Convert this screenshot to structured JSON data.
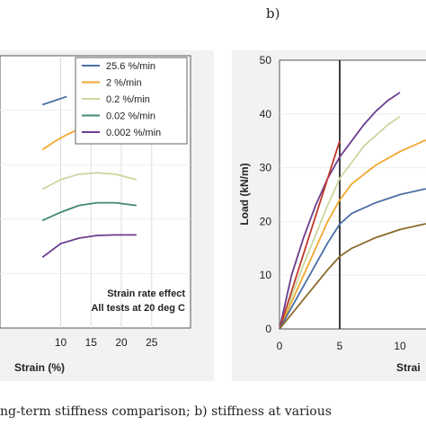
{
  "panel_letter": "b)",
  "caption": "ng-term stiffness comparison; b) stiffness at various",
  "colors": {
    "blue": "#4a6fa5",
    "orange": "#f0a830",
    "light_green": "#c8d8a0",
    "teal": "#3f8a72",
    "purple": "#6a3d8e",
    "red": "#c0392b",
    "brown": "#8b6b2e",
    "black": "#111111"
  },
  "chart_data": [
    {
      "type": "line",
      "title": "",
      "xlabel": "Strain (%)",
      "ylabel": "",
      "xlim": [
        0,
        25
      ],
      "x_ticks": [
        "10",
        "15",
        "20",
        "25"
      ],
      "legend": {
        "placement": "top-right"
      },
      "annotation": [
        "Strain rate effect",
        "All tests at 20 deg C"
      ],
      "series": [
        {
          "name": "25.6 %/min",
          "color": "blue",
          "x": [
            7,
            9,
            11
          ],
          "y": [
            0.82,
            0.835,
            0.85
          ]
        },
        {
          "name": "2 %/min",
          "color": "orange",
          "x": [
            7,
            9,
            11,
            13,
            15
          ],
          "y": [
            0.655,
            0.685,
            0.71,
            0.73,
            0.725
          ]
        },
        {
          "name": "0.2 %/min",
          "color": "light_green",
          "x": [
            7,
            10,
            13,
            16,
            19,
            22.5
          ],
          "y": [
            0.51,
            0.545,
            0.565,
            0.57,
            0.565,
            0.545
          ]
        },
        {
          "name": "0.02 %/min",
          "color": "teal",
          "x": [
            7,
            10,
            13,
            16,
            19,
            22.5
          ],
          "y": [
            0.395,
            0.425,
            0.45,
            0.46,
            0.46,
            0.45
          ]
        },
        {
          "name": "0.002 %/min",
          "color": "purple",
          "x": [
            7,
            10,
            13,
            16,
            19,
            22.5
          ],
          "y": [
            0.26,
            0.31,
            0.33,
            0.34,
            0.342,
            0.342
          ]
        }
      ]
    },
    {
      "type": "line",
      "title": "",
      "xlabel": "Strai",
      "ylabel": "Load (kN/m)",
      "xlim": [
        0,
        14
      ],
      "ylim": [
        0,
        50
      ],
      "x_ticks": [
        "0",
        "5",
        "10"
      ],
      "y_ticks": [
        "0",
        "10",
        "20",
        "30",
        "40",
        "50"
      ],
      "vertical_line": {
        "x": 5,
        "color": "black"
      },
      "series": [
        {
          "color": "purple",
          "x": [
            0,
            1,
            2,
            3,
            4,
            5,
            6,
            7,
            8,
            9,
            10
          ],
          "y": [
            0,
            10,
            17,
            23,
            28,
            32,
            35,
            38,
            40.5,
            42.5,
            44
          ]
        },
        {
          "color": "light_green",
          "x": [
            0,
            2,
            4,
            5,
            6,
            7,
            8,
            9,
            10
          ],
          "y": [
            0,
            12,
            23,
            28,
            31,
            34,
            36,
            38,
            39.5
          ]
        },
        {
          "color": "orange",
          "x": [
            0,
            2,
            4,
            5,
            6,
            8,
            10,
            12,
            14
          ],
          "y": [
            0,
            10,
            20,
            24,
            27,
            30.5,
            33,
            35,
            36
          ]
        },
        {
          "color": "red",
          "x": [
            0,
            5
          ],
          "y": [
            0,
            35
          ]
        },
        {
          "color": "blue",
          "x": [
            0,
            2,
            4,
            5,
            6,
            8,
            10,
            12,
            14
          ],
          "y": [
            0,
            8,
            16,
            19.5,
            21.5,
            23.5,
            25,
            26,
            26.5
          ]
        },
        {
          "color": "brown",
          "x": [
            0,
            2,
            4,
            5,
            6,
            8,
            10,
            12,
            14
          ],
          "y": [
            0,
            5.5,
            11,
            13.5,
            15,
            17,
            18.5,
            19.5,
            20
          ]
        }
      ]
    }
  ]
}
